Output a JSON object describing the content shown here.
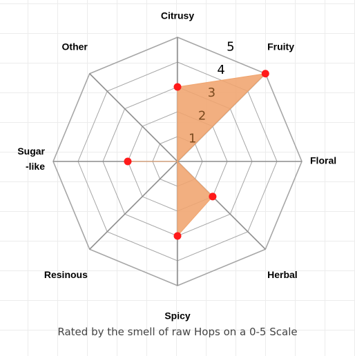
{
  "chart_data": {
    "type": "radar",
    "axes": [
      "Citrusy",
      "Fruity",
      "Floral",
      "Herbal",
      "Spicy",
      "Resinous",
      "Sugar\n-like",
      "Other"
    ],
    "values": [
      3,
      5,
      0,
      2,
      3,
      0,
      2,
      0
    ],
    "ticks": [
      "1",
      "2",
      "3",
      "4",
      "5"
    ],
    "rmax": 5,
    "grid": true,
    "fill_color": "#f0a46e",
    "point_color": "#ff1a1a",
    "grid_color": "#a6a6a6",
    "tick_label_colors": [
      "#7a4a1e",
      "#7a4a1e",
      "#7a4a1e",
      "#000000",
      "#000000"
    ]
  },
  "caption": "Rated by the smell of raw Hops on a 0-5 Scale"
}
